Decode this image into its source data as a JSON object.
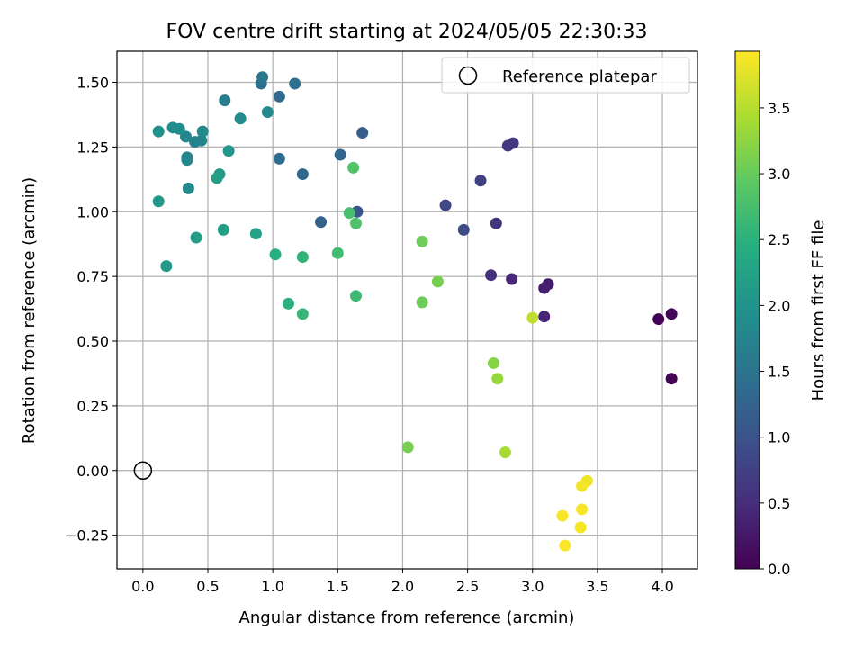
{
  "chart_data": {
    "type": "scatter",
    "title": "FOV centre drift starting at 2024/05/05 22:30:33",
    "xlabel": "Angular distance from reference (arcmin)",
    "ylabel": "Rotation from reference (arcmin)",
    "xlim": [
      -0.2,
      4.27
    ],
    "ylim": [
      -0.38,
      1.62
    ],
    "xticks": [
      0.0,
      0.5,
      1.0,
      1.5,
      2.0,
      2.5,
      3.0,
      3.5,
      4.0
    ],
    "xtick_labels": [
      "0.0",
      "0.5",
      "1.0",
      "1.5",
      "2.0",
      "2.5",
      "3.0",
      "3.5",
      "4.0"
    ],
    "yticks": [
      -0.25,
      0.0,
      0.25,
      0.5,
      0.75,
      1.0,
      1.25,
      1.5
    ],
    "ytick_labels": [
      "−0.25",
      "0.00",
      "0.25",
      "0.50",
      "0.75",
      "1.00",
      "1.25",
      "1.50"
    ],
    "grid": true,
    "colormap": "viridis",
    "colorbar": {
      "label": "Hours from first FF file",
      "range": [
        0.0,
        3.93
      ],
      "ticks": [
        0.0,
        0.5,
        1.0,
        1.5,
        2.0,
        2.5,
        3.0,
        3.5
      ],
      "tick_labels": [
        "0.0",
        "0.5",
        "1.0",
        "1.5",
        "2.0",
        "2.5",
        "3.0",
        "3.5"
      ]
    },
    "legend": {
      "placement": "upper right",
      "entries": [
        {
          "label": "Reference platepar",
          "marker": "open-circle"
        }
      ]
    },
    "reference_point": {
      "x": 0.0,
      "y": 0.0
    },
    "series": [
      {
        "x": [
          3.97,
          4.07,
          4.07,
          3.12,
          3.09,
          3.09,
          2.84,
          2.68,
          2.72,
          2.81,
          2.85,
          2.6,
          2.33,
          2.47,
          1.65,
          1.37,
          1.52,
          1.23,
          1.05,
          1.69,
          1.05,
          0.91,
          1.17,
          0.92,
          0.63,
          0.96,
          0.75,
          0.66,
          0.59,
          0.57,
          0.46,
          0.45,
          0.4,
          0.34,
          0.34,
          0.33,
          0.35,
          0.28,
          0.23,
          0.12,
          0.12,
          0.18,
          0.41,
          0.62,
          0.87,
          1.02,
          1.23,
          1.12,
          1.23,
          1.5,
          1.64,
          1.59,
          1.64,
          1.62,
          2.15,
          2.27,
          2.15,
          2.04,
          2.7,
          2.73,
          2.79,
          3.0,
          3.42,
          3.38,
          3.38,
          3.37,
          3.23,
          3.25
        ],
        "y": [
          0.585,
          0.605,
          0.355,
          0.72,
          0.705,
          0.595,
          0.74,
          0.755,
          0.955,
          1.255,
          1.265,
          1.12,
          1.025,
          0.93,
          1.0,
          0.96,
          1.22,
          1.145,
          1.205,
          1.305,
          1.445,
          1.495,
          1.495,
          1.52,
          1.43,
          1.385,
          1.36,
          1.235,
          1.145,
          1.13,
          1.31,
          1.275,
          1.27,
          1.21,
          1.2,
          1.29,
          1.09,
          1.32,
          1.325,
          1.31,
          1.04,
          0.79,
          0.9,
          0.93,
          0.915,
          0.835,
          0.825,
          0.645,
          0.605,
          0.84,
          0.675,
          0.995,
          0.955,
          1.17,
          0.885,
          0.73,
          0.65,
          0.09,
          0.415,
          0.355,
          0.07,
          0.59,
          -0.04,
          -0.06,
          -0.15,
          -0.22,
          -0.175,
          -0.29
        ],
        "hours": [
          0.02,
          0.06,
          0.04,
          0.3,
          0.35,
          0.4,
          0.45,
          0.55,
          0.6,
          0.65,
          0.62,
          0.75,
          0.85,
          0.9,
          1.05,
          1.2,
          1.3,
          1.3,
          1.4,
          1.15,
          1.35,
          1.45,
          1.42,
          1.55,
          1.65,
          1.85,
          1.9,
          2.05,
          2.1,
          2.2,
          1.85,
          1.8,
          1.75,
          1.7,
          1.8,
          1.78,
          1.85,
          1.88,
          1.9,
          1.95,
          2.05,
          2.1,
          2.15,
          2.2,
          2.25,
          2.45,
          2.55,
          2.5,
          2.6,
          2.7,
          2.65,
          2.75,
          2.8,
          2.85,
          3.05,
          3.1,
          3.05,
          3.1,
          3.2,
          3.3,
          3.4,
          3.55,
          3.85,
          3.87,
          3.88,
          3.89,
          3.9,
          3.92
        ]
      }
    ]
  }
}
